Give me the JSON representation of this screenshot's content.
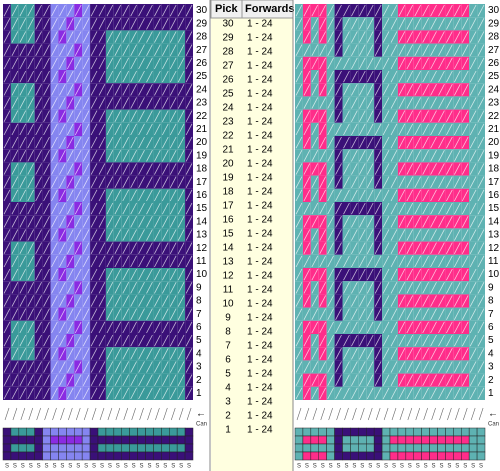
{
  "left_panel": {
    "row_numbers": [
      30,
      29,
      28,
      27,
      26,
      25,
      24,
      23,
      22,
      21,
      20,
      19,
      18,
      17,
      16,
      15,
      14,
      13,
      12,
      11,
      10,
      9,
      8,
      7,
      6,
      5,
      4,
      3,
      2,
      1
    ],
    "arrow": "←",
    "can_label": "Can",
    "threading_labels": [
      "S",
      "S",
      "S",
      "S",
      "S",
      "S",
      "S",
      "S",
      "S",
      "S",
      "S",
      "S",
      "S",
      "S",
      "S",
      "S",
      "S",
      "S",
      "S",
      "S",
      "S",
      "S",
      "S",
      "S"
    ]
  },
  "pick_table": {
    "headers": [
      "Pick",
      "Forwards"
    ],
    "rows": [
      [
        30,
        "1 - 24"
      ],
      [
        29,
        "1 - 24"
      ],
      [
        28,
        "1 - 24"
      ],
      [
        27,
        "1 - 24"
      ],
      [
        26,
        "1 - 24"
      ],
      [
        25,
        "1 - 24"
      ],
      [
        24,
        "1 - 24"
      ],
      [
        23,
        "1 - 24"
      ],
      [
        22,
        "1 - 24"
      ],
      [
        21,
        "1 - 24"
      ],
      [
        20,
        "1 - 24"
      ],
      [
        19,
        "1 - 24"
      ],
      [
        18,
        "1 - 24"
      ],
      [
        17,
        "1 - 24"
      ],
      [
        16,
        "1 - 24"
      ],
      [
        15,
        "1 - 24"
      ],
      [
        14,
        "1 - 24"
      ],
      [
        13,
        "1 - 24"
      ],
      [
        12,
        "1 - 24"
      ],
      [
        11,
        "1 - 24"
      ],
      [
        10,
        "1 - 24"
      ],
      [
        9,
        "1 - 24"
      ],
      [
        8,
        "1 - 24"
      ],
      [
        7,
        "1 - 24"
      ],
      [
        6,
        "1 - 24"
      ],
      [
        5,
        "1 - 24"
      ],
      [
        4,
        "1 - 24"
      ],
      [
        3,
        "1 - 24"
      ],
      [
        2,
        "1 - 24"
      ],
      [
        1,
        "1 - 24"
      ]
    ]
  },
  "right_panel": {
    "row_numbers": [
      30,
      29,
      28,
      27,
      26,
      25,
      24,
      23,
      22,
      21,
      20,
      19,
      18,
      17,
      16,
      15,
      14,
      13,
      12,
      11,
      10,
      9,
      8,
      7,
      6,
      5,
      4,
      3,
      2,
      1
    ],
    "arrow": "←",
    "can_label": "Can",
    "threading_labels": [
      "S",
      "S",
      "S",
      "S",
      "S",
      "S",
      "S",
      "S",
      "S",
      "S",
      "S",
      "S",
      "S",
      "S",
      "S",
      "S",
      "S",
      "S",
      "S",
      "S",
      "S",
      "S",
      "S",
      "S"
    ]
  }
}
